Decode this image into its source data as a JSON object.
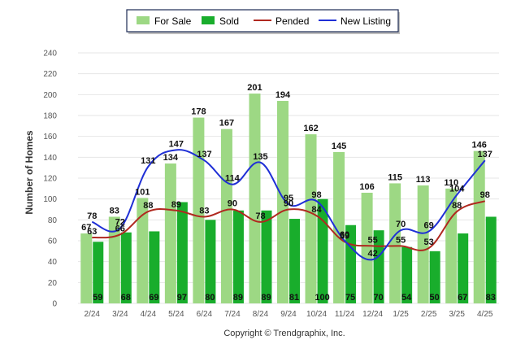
{
  "legend": {
    "for_sale": "For Sale",
    "sold": "Sold",
    "pended": "Pended",
    "new_listing": "New Listing"
  },
  "footer": {
    "copyright": "Copyright © Trendgraphix, Inc."
  },
  "colors": {
    "for_sale": "#9dd884",
    "sold": "#19ad2c",
    "pended": "#b0281f",
    "new_listing": "#1f2fd6",
    "grid": "#e6e6e6",
    "axis_text": "#555555",
    "label_text": "#111111"
  },
  "chart_data": {
    "type": "bar",
    "ylabel": "Number of Homes",
    "xlabel": "",
    "title": "",
    "ylim": [
      0,
      240
    ],
    "yticks": [
      0,
      20,
      40,
      60,
      80,
      100,
      120,
      140,
      160,
      180,
      200,
      220,
      240
    ],
    "grid": true,
    "legend_position": "top-center",
    "categories": [
      "2/24",
      "3/24",
      "4/24",
      "5/24",
      "6/24",
      "7/24",
      "8/24",
      "9/24",
      "10/24",
      "11/24",
      "12/24",
      "1/25",
      "2/25",
      "3/25",
      "4/25"
    ],
    "series": [
      {
        "name": "For Sale",
        "kind": "bar",
        "values": [
          67,
          83,
          101,
          134,
          178,
          167,
          201,
          194,
          162,
          145,
          106,
          115,
          113,
          110,
          146
        ]
      },
      {
        "name": "Sold",
        "kind": "bar",
        "values": [
          59,
          68,
          69,
          97,
          80,
          89,
          89,
          81,
          100,
          75,
          70,
          54,
          50,
          67,
          83
        ]
      },
      {
        "name": "Pended",
        "kind": "line",
        "values": [
          63,
          66,
          88,
          89,
          83,
          90,
          78,
          90,
          84,
          59,
          55,
          55,
          53,
          88,
          98
        ]
      },
      {
        "name": "New Listing",
        "kind": "line",
        "values": [
          78,
          72,
          131,
          147,
          137,
          114,
          135,
          95,
          98,
          60,
          42,
          70,
          69,
          104,
          137
        ]
      }
    ]
  }
}
